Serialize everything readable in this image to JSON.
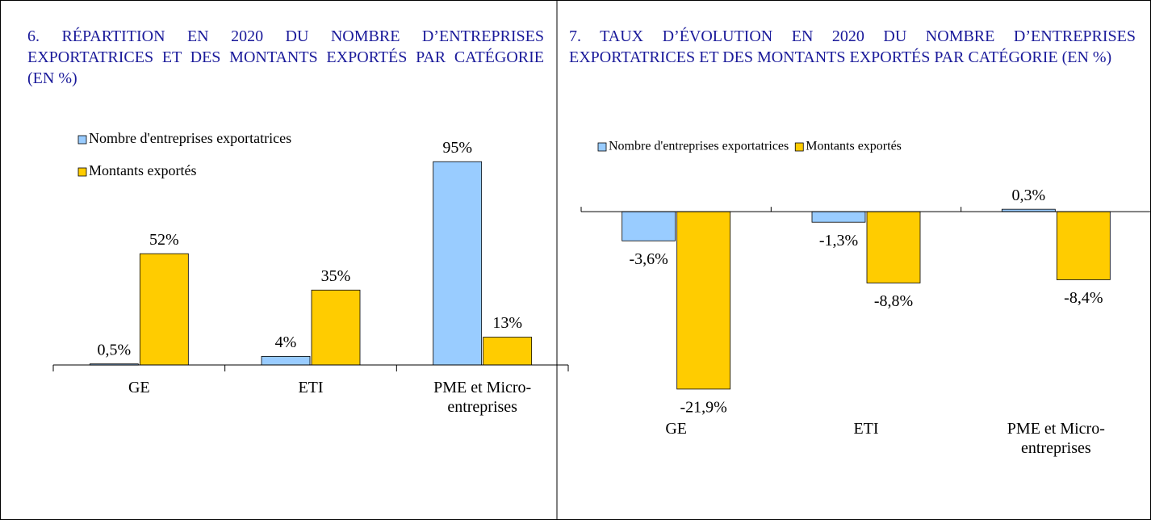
{
  "chart_data": [
    {
      "type": "bar",
      "title": "6. RÉPARTITION EN 2020 DU NOMBRE D’ENTREPRISES EXPORTATRICES ET DES MONTANTS EXPORTÉS PAR CATÉGORIE (EN %)",
      "categories": [
        "GE",
        "ETI",
        "PME et Micro-entreprises"
      ],
      "series": [
        {
          "name": "Nombre d'entreprises exportatrices",
          "color": "#99ccff",
          "values": [
            0.5,
            4,
            95
          ],
          "value_labels": [
            "0,5%",
            "4%",
            "95%"
          ]
        },
        {
          "name": "Montants exportés",
          "color": "#ffcc00",
          "values": [
            52,
            35,
            13
          ],
          "value_labels": [
            "52%",
            "35%",
            "13%"
          ]
        }
      ],
      "ylim": [
        0,
        100
      ],
      "legend": "top-left"
    },
    {
      "type": "bar",
      "title": "7. TAUX D’ÉVOLUTION EN 2020 DU NOMBRE D’ENTREPRISES EXPORTATRICES ET DES MONTANTS EXPORTÉS PAR CATÉGORIE (EN %)",
      "categories": [
        "GE",
        "ETI",
        "PME et Micro-entreprises"
      ],
      "series": [
        {
          "name": "Nombre d'entreprises exportatrices",
          "color": "#99ccff",
          "values": [
            -3.6,
            -1.3,
            0.3
          ],
          "value_labels": [
            "-3,6%",
            "-1,3%",
            "0,3%"
          ]
        },
        {
          "name": "Montants exportés",
          "color": "#ffcc00",
          "values": [
            -21.9,
            -8.8,
            -8.4
          ],
          "value_labels": [
            "-21,9%",
            "-8,8%",
            "-8,4%"
          ]
        }
      ],
      "ylim": [
        -25,
        5
      ],
      "legend": "top"
    }
  ]
}
